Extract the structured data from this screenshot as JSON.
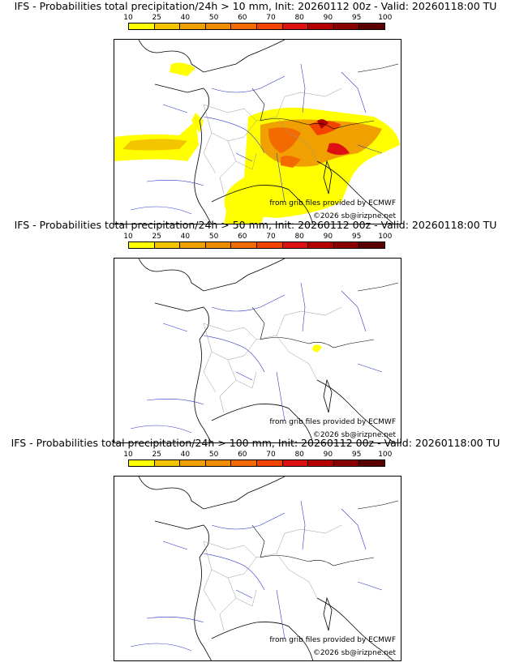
{
  "panels": [
    {
      "title": "IFS - Probabilities total precipitation/24h > 10 mm, Init: 20260112 00z - Valid: 20260118:00 TU",
      "threshold": "10"
    },
    {
      "title": "IFS - Probabilities total precipitation/24h > 50 mm, Init: 20260112 00z - Valid: 20260118:00 TU",
      "threshold": "50"
    },
    {
      "title": "IFS - Probabilities total precipitation/24h > 100 mm, Init: 20260112 00z - Valid: 20260118:00 TU",
      "threshold": "100"
    }
  ],
  "scale": {
    "labels": [
      "10",
      "25",
      "40",
      "50",
      "60",
      "70",
      "80",
      "90",
      "95",
      "100"
    ],
    "colors": [
      "#ffff00",
      "#f5c400",
      "#f0a000",
      "#ef8c00",
      "#f36a00",
      "#f24400",
      "#dd1111",
      "#b50000",
      "#8a0000",
      "#5a0000"
    ]
  },
  "credits": {
    "source": "from grib files provided by ECMWF",
    "copyright": "©2026 sb@irizpne.net"
  }
}
